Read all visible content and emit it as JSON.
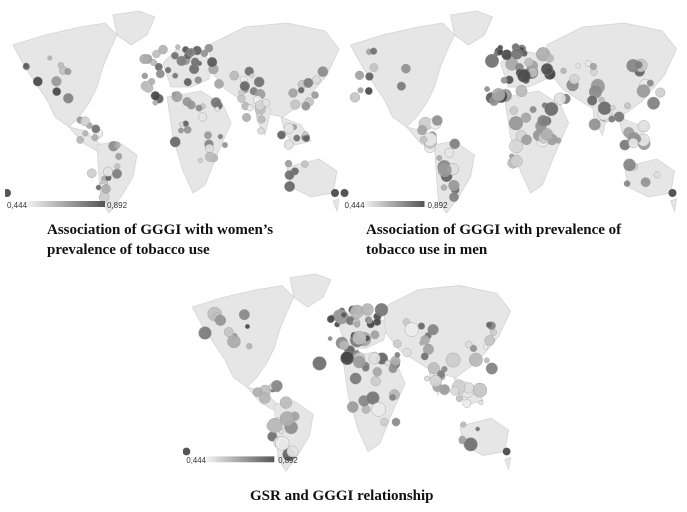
{
  "colors": {
    "land": "#e6e6e6",
    "land_edge": "#d4d4d4",
    "scale_low": "#f2f2f2",
    "scale_high": "#555555"
  },
  "panels": [
    {
      "caption_line1": "Association of GGGI with women’s",
      "caption_line2": "prevalence of tobacco use",
      "scale_min": "0,444",
      "scale_max": "0,892"
    },
    {
      "caption_line1": "Association of GGGI with prevalence of",
      "caption_line2": "tobacco use in men",
      "scale_min": "0,444",
      "scale_max": "0,892"
    },
    {
      "caption_line1": "GSR and GGGI relationship",
      "scale_min": "0,444",
      "scale_max": "0,892"
    }
  ]
}
